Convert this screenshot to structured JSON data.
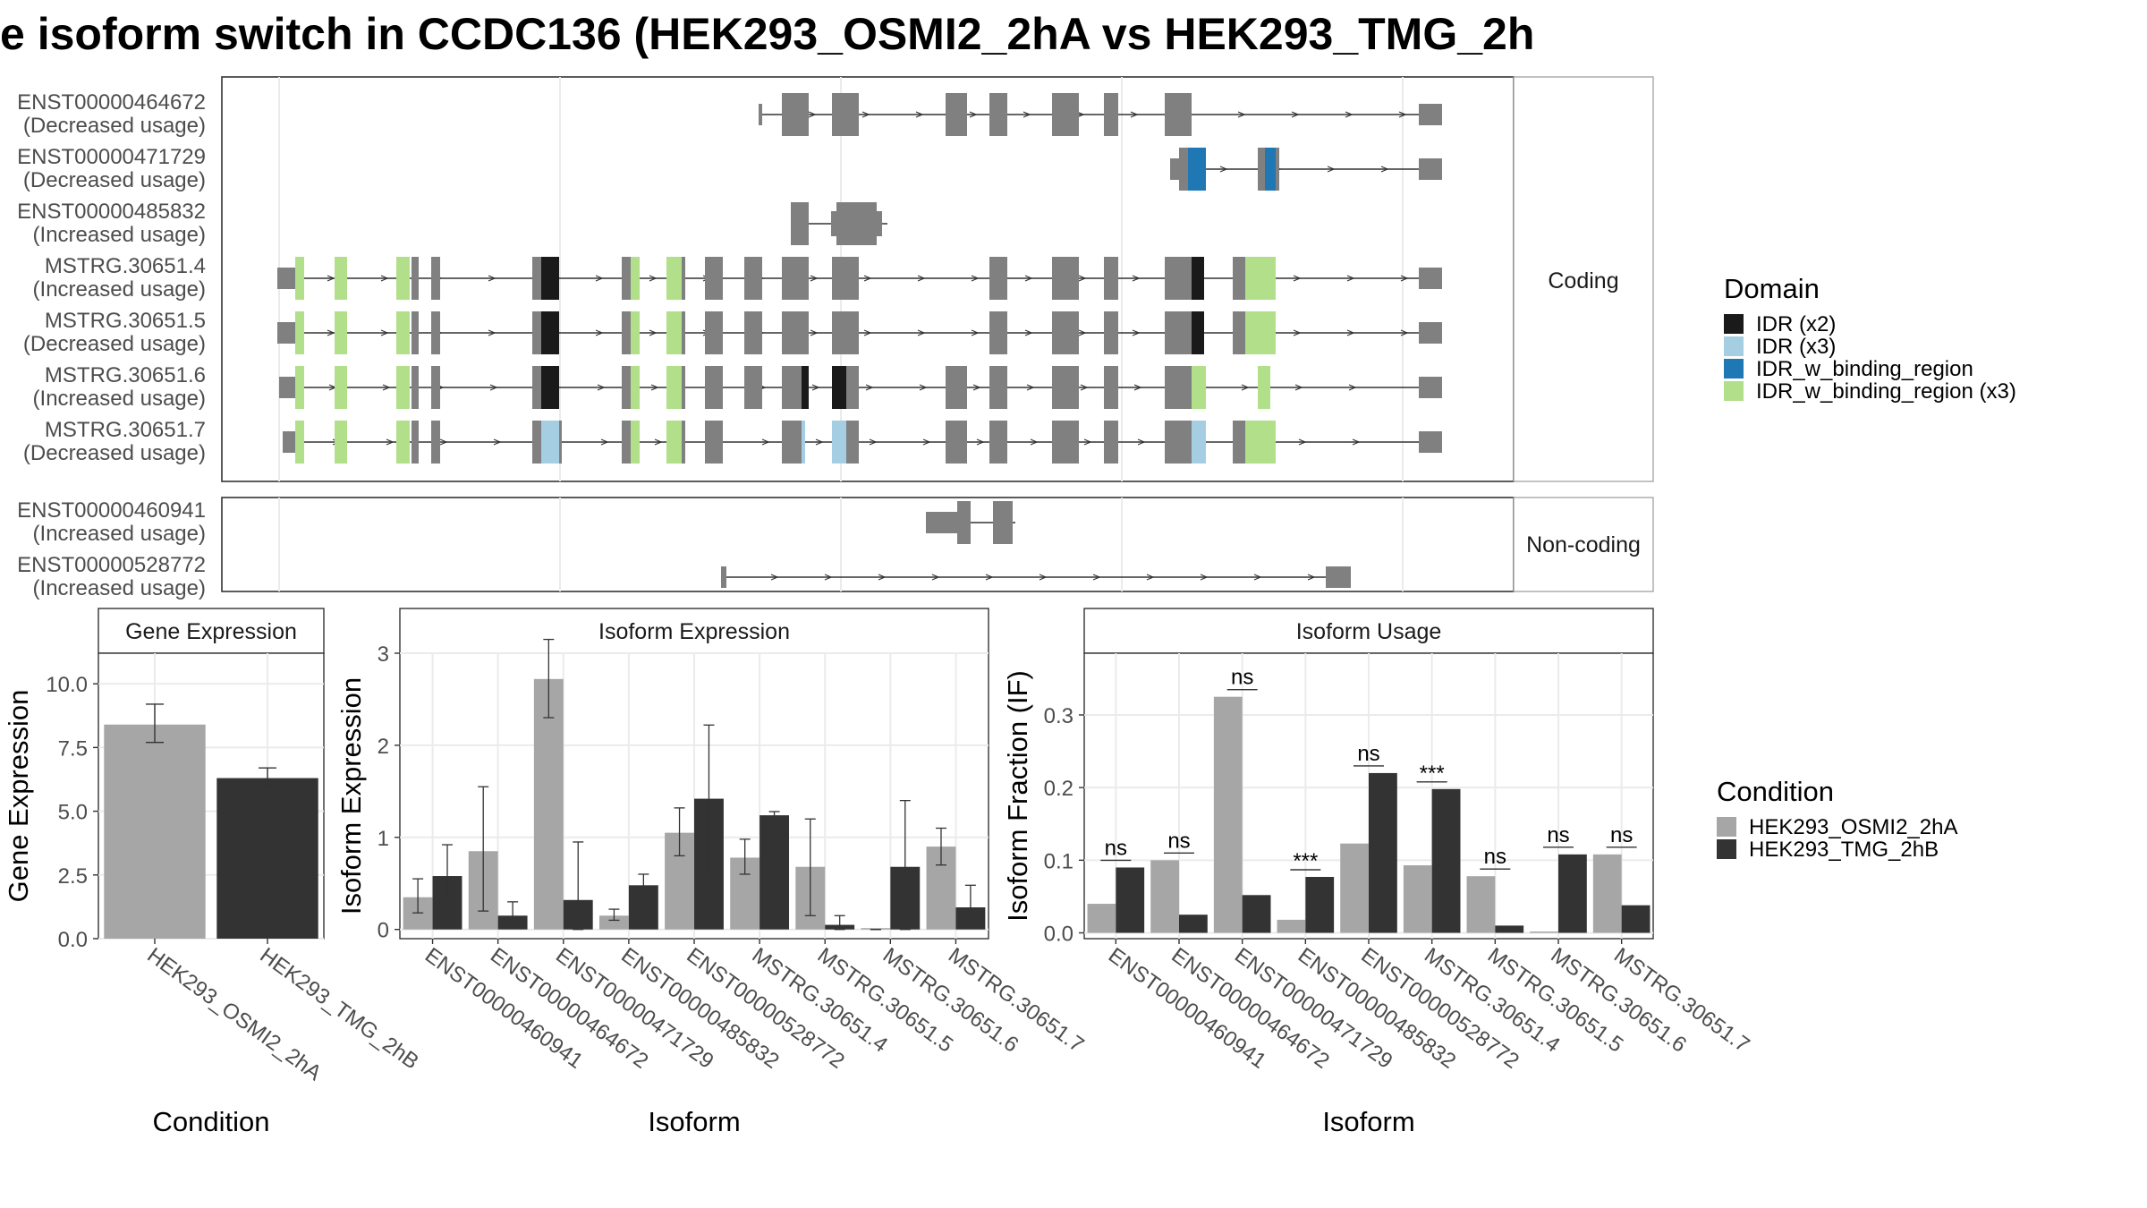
{
  "title": "e isoform switch in CCDC136 (HEK293_OSMI2_2hA vs HEK293_TMG_2h",
  "colors": {
    "exon": "#808080",
    "idr_x2": "#1a1a1a",
    "idr_x3": "#a6cee3",
    "idr_w_binding_region": "#1f78b4",
    "idr_w_binding_region_x3": "#b2df8a",
    "cond_a": "#a6a6a6",
    "cond_b": "#333333"
  },
  "structure": {
    "coding_label": "Coding",
    "noncoding_label": "Non-coding",
    "coding": [
      {
        "id": "ENST00000464672",
        "usage": "(Decreased usage)"
      },
      {
        "id": "ENST00000471729",
        "usage": "(Decreased usage)"
      },
      {
        "id": "ENST00000485832",
        "usage": "(Increased usage)"
      },
      {
        "id": "MSTRG.30651.4",
        "usage": "(Increased usage)"
      },
      {
        "id": "MSTRG.30651.5",
        "usage": "(Decreased usage)"
      },
      {
        "id": "MSTRG.30651.6",
        "usage": "(Increased usage)"
      },
      {
        "id": "MSTRG.30651.7",
        "usage": "(Decreased usage)"
      }
    ],
    "noncoding": [
      {
        "id": "ENST00000460941",
        "usage": "(Increased usage)"
      },
      {
        "id": "ENST00000528772",
        "usage": "(Increased usage)"
      }
    ]
  },
  "domain_legend": {
    "title": "Domain",
    "items": [
      {
        "label": "IDR (x2)",
        "color": "#1a1a1a"
      },
      {
        "label": "IDR (x3)",
        "color": "#a6cee3"
      },
      {
        "label": "IDR_w_binding_region",
        "color": "#1f78b4"
      },
      {
        "label": "IDR_w_binding_region (x3)",
        "color": "#b2df8a"
      }
    ]
  },
  "condition_legend": {
    "title": "Condition",
    "items": [
      {
        "label": "HEK293_OSMI2_2hA",
        "color": "#a6a6a6"
      },
      {
        "label": "HEK293_TMG_2hB",
        "color": "#333333"
      }
    ]
  },
  "chart_data": [
    {
      "type": "bar",
      "title": "Gene Expression",
      "xlabel": "Condition",
      "ylabel": "Gene Expression",
      "ylim": [
        0,
        11.2
      ],
      "yticks": [
        "0.0",
        "2.5",
        "5.0",
        "7.5",
        "10.0"
      ],
      "categories": [
        "HEK293_OSMI2_2hA",
        "HEK293_TMG_2hB"
      ],
      "values": [
        8.4,
        6.3
      ],
      "errors": [
        [
          7.7,
          9.2
        ],
        [
          6.0,
          6.7
        ]
      ]
    },
    {
      "type": "bar",
      "title": "Isoform Expression",
      "xlabel": "Isoform",
      "ylabel": "Isoform Expression",
      "ylim": [
        -0.1,
        3.0
      ],
      "yticks": [
        "0",
        "1",
        "2",
        "3"
      ],
      "categories": [
        "ENST00000460941",
        "ENST00000464672",
        "ENST00000471729",
        "ENST00000485832",
        "ENST00000528772",
        "MSTRG.30651.4",
        "MSTRG.30651.5",
        "MSTRG.30651.6",
        "MSTRG.30651.7"
      ],
      "series": [
        {
          "name": "HEK293_OSMI2_2hA",
          "values": [
            0.35,
            0.85,
            2.72,
            0.15,
            1.05,
            0.78,
            0.68,
            0.0,
            0.9
          ],
          "errors": [
            [
              0.18,
              0.55
            ],
            [
              0.2,
              1.55
            ],
            [
              2.3,
              3.15
            ],
            [
              0.1,
              0.22
            ],
            [
              0.8,
              1.32
            ],
            [
              0.6,
              0.98
            ],
            [
              0.15,
              1.2
            ],
            [
              0.0,
              0.0
            ],
            [
              0.7,
              1.1
            ]
          ]
        },
        {
          "name": "HEK293_TMG_2hB",
          "values": [
            0.58,
            0.15,
            0.32,
            0.48,
            1.42,
            1.24,
            0.05,
            0.68,
            0.24
          ],
          "errors": [
            [
              0.3,
              0.92
            ],
            [
              0.05,
              0.3
            ],
            [
              0.0,
              0.95
            ],
            [
              0.35,
              0.6
            ],
            [
              0.6,
              2.22
            ],
            [
              1.2,
              1.28
            ],
            [
              0.0,
              0.15
            ],
            [
              0.0,
              1.4
            ],
            [
              0.05,
              0.48
            ]
          ]
        }
      ]
    },
    {
      "type": "bar",
      "title": "Isoform Usage",
      "xlabel": "Isoform",
      "ylabel": "Isoform Fraction (IF)",
      "ylim": [
        -0.008,
        0.385
      ],
      "yticks": [
        "0.0",
        "0.1",
        "0.2",
        "0.3"
      ],
      "categories": [
        "ENST00000460941",
        "ENST00000464672",
        "ENST00000471729",
        "ENST00000485832",
        "ENST00000528772",
        "MSTRG.30651.4",
        "MSTRG.30651.5",
        "MSTRG.30651.6",
        "MSTRG.30651.7"
      ],
      "series": [
        {
          "name": "HEK293_OSMI2_2hA",
          "values": [
            0.04,
            0.1,
            0.325,
            0.018,
            0.123,
            0.093,
            0.078,
            0.0,
            0.108
          ]
        },
        {
          "name": "HEK293_TMG_2hB",
          "values": [
            0.09,
            0.025,
            0.052,
            0.077,
            0.22,
            0.198,
            0.01,
            0.108,
            0.038
          ]
        }
      ],
      "significance": [
        "ns",
        "ns",
        "ns",
        "***",
        "ns",
        "***",
        "ns",
        "ns",
        "ns"
      ]
    }
  ]
}
